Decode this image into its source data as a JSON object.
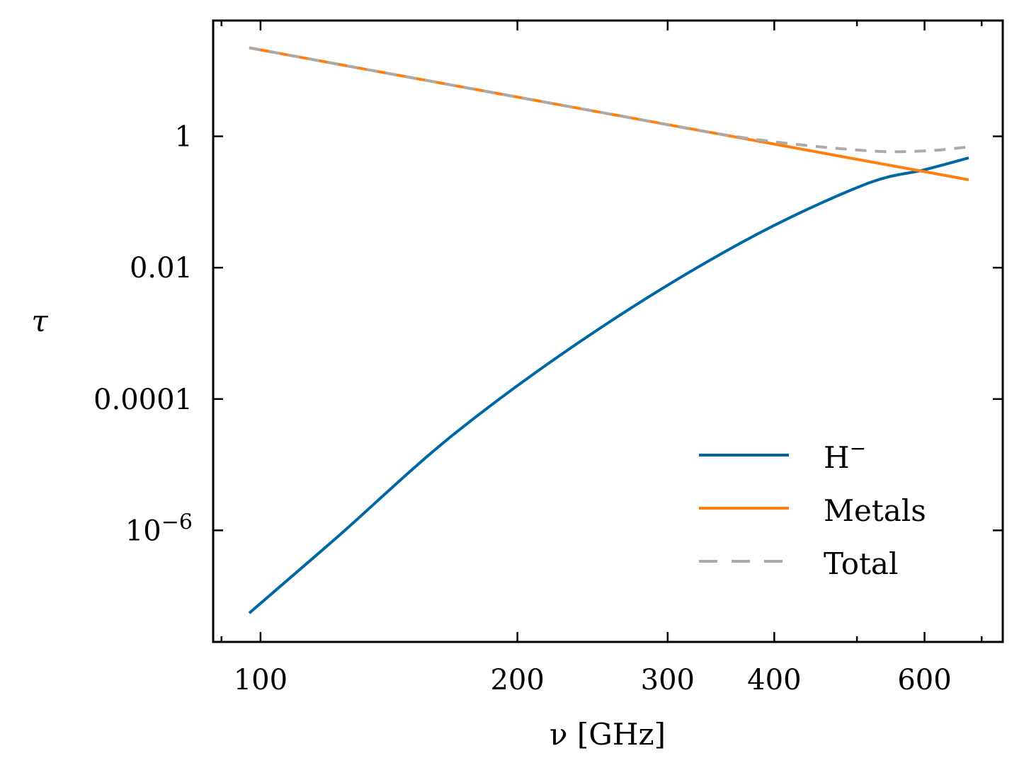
{
  "chart_data": {
    "type": "line",
    "title": "",
    "xlabel": "ν [GHz]",
    "ylabel": "τ",
    "xscale": "log",
    "yscale": "log",
    "xlim": [
      88,
      741
    ],
    "ylim": [
      2e-08,
      58
    ],
    "grid": false,
    "legend_position": "lower-right",
    "x_ticks": [
      {
        "value": 90,
        "label": "",
        "major": false
      },
      {
        "value": 100,
        "label": "100",
        "major": true
      },
      {
        "value": 200,
        "label": "200",
        "major": true
      },
      {
        "value": 300,
        "label": "300",
        "major": true
      },
      {
        "value": 400,
        "label": "400",
        "major": true
      },
      {
        "value": 500,
        "label": "",
        "major": false
      },
      {
        "value": 600,
        "label": "600",
        "major": true
      },
      {
        "value": 700,
        "label": "",
        "major": false
      }
    ],
    "y_ticks": [
      {
        "value": 1,
        "label": "1"
      },
      {
        "value": 0.01,
        "label": "0.01"
      },
      {
        "value": 0.0001,
        "label": "0.0001"
      },
      {
        "value": 1e-06,
        "label_base": "10",
        "label_exp": "−6"
      }
    ],
    "x": [
      97,
      123,
      170,
      250,
      368,
      508,
      600,
      676
    ],
    "series": [
      {
        "name": "H",
        "name_sup": "−",
        "color": "#0067a5",
        "dash": false,
        "values": [
          5.5e-08,
          7.9e-07,
          3.2e-05,
          0.0012,
          0.025,
          0.18,
          0.31,
          0.47
        ]
      },
      {
        "name": "Metals",
        "name_sup": "",
        "color": "#ff7f0e",
        "dash": false,
        "values": [
          22.3,
          12.6,
          5.83,
          2.33,
          0.929,
          0.43,
          0.29,
          0.218
        ]
      },
      {
        "name": "Total",
        "name_sup": "",
        "color": "#aaaaaa",
        "dash": true,
        "values": [
          22.3,
          12.6,
          5.83,
          2.33,
          0.954,
          0.61,
          0.6,
          0.69
        ]
      }
    ]
  }
}
